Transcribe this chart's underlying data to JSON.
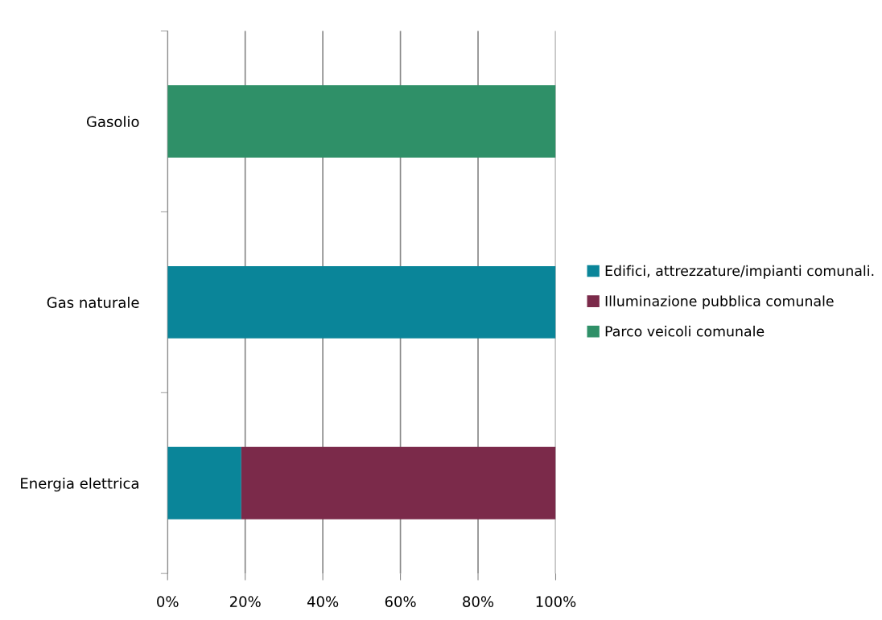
{
  "chart_data": {
    "type": "bar",
    "orientation": "horizontal",
    "stacked": true,
    "categories": [
      "Gasolio",
      "Gas naturale",
      "Energia elettrica"
    ],
    "series": [
      {
        "name": "Edifici, attrezzature/impianti comunali.",
        "color": "#0a8599",
        "values": [
          0,
          100,
          19
        ]
      },
      {
        "name": "Illuminazione pubblica comunale",
        "color": "#7b2a4a",
        "values": [
          0,
          0,
          81
        ]
      },
      {
        "name": "Parco veicoli comunale",
        "color": "#2f9068",
        "values": [
          100,
          0,
          0
        ]
      }
    ],
    "xlim": [
      0,
      100
    ],
    "xticks": [
      {
        "value": 0,
        "label": "0%"
      },
      {
        "value": 20,
        "label": "20%"
      },
      {
        "value": 40,
        "label": "40%"
      },
      {
        "value": 60,
        "label": "60%"
      },
      {
        "value": 80,
        "label": "80%"
      },
      {
        "value": 100,
        "label": "100%"
      }
    ],
    "grid": "x",
    "legend": "right"
  }
}
